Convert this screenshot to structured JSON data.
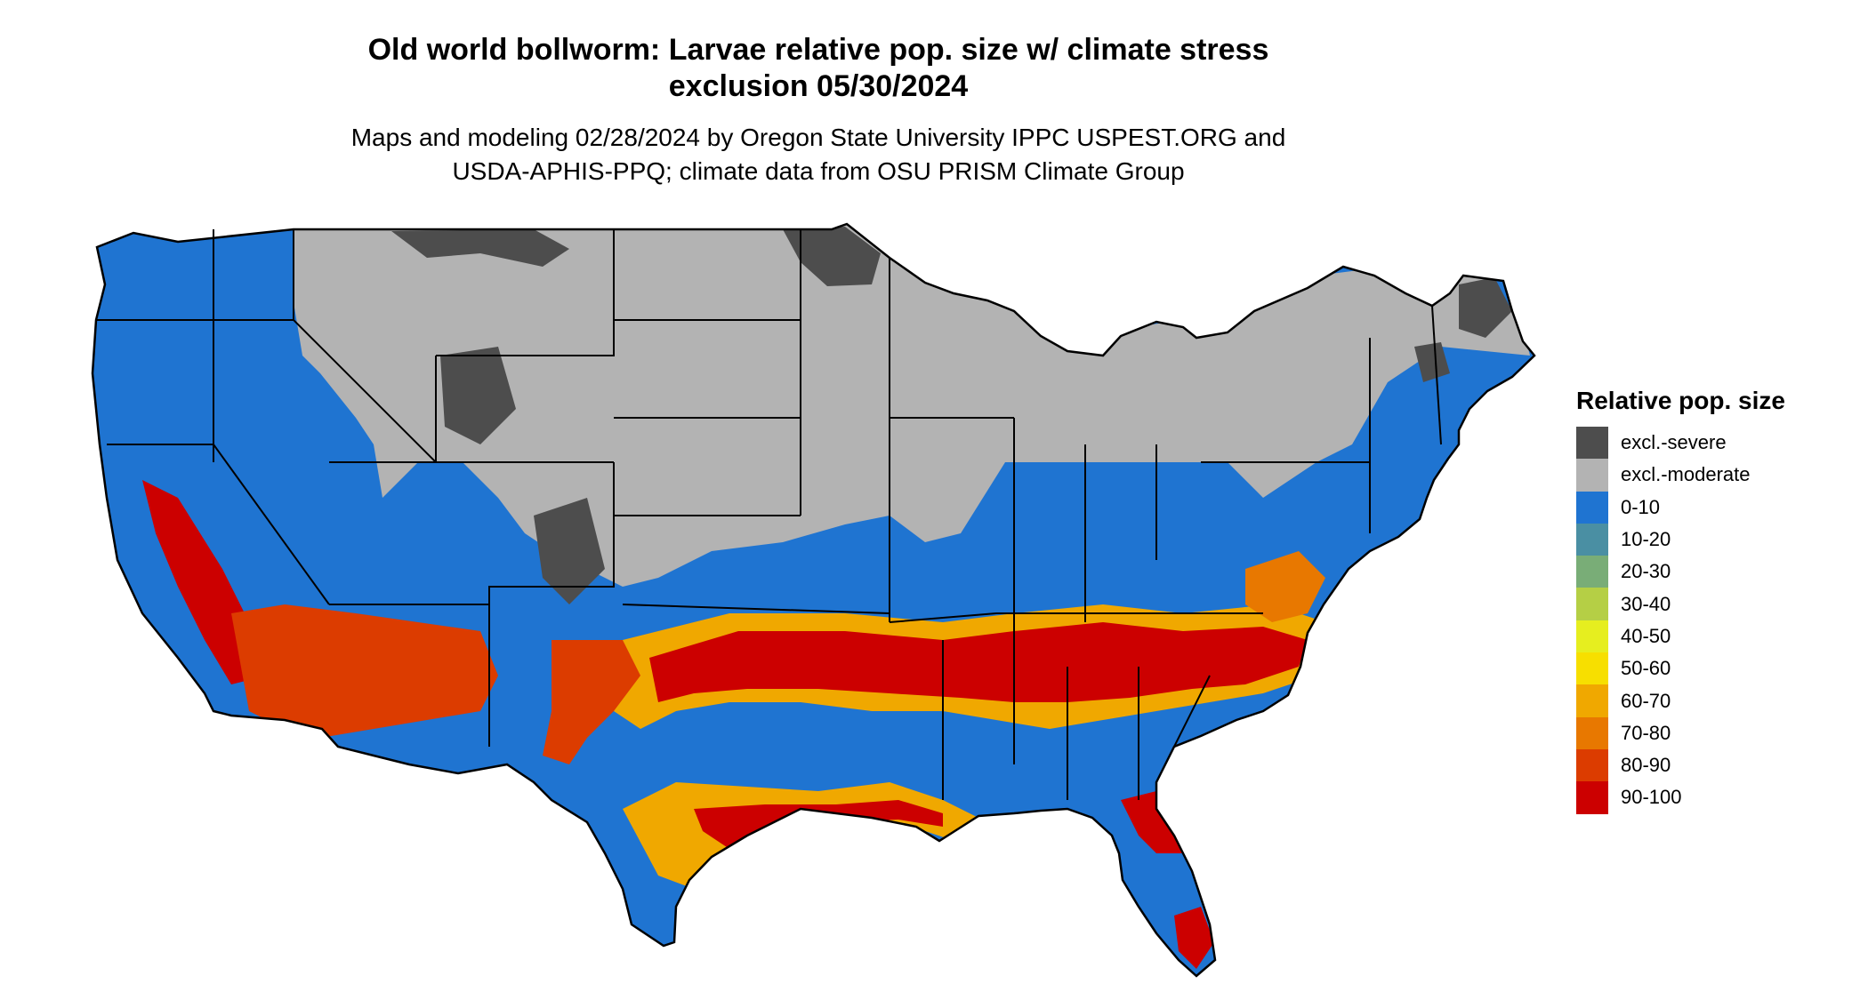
{
  "title": {
    "line1": "Old world bollworm: Larvae relative pop. size w/ climate stress",
    "line2": "exclusion 05/30/2024"
  },
  "subtitle": {
    "line1": "Maps and modeling 02/28/2024 by Oregon State University IPPC USPEST.ORG and",
    "line2": "USDA-APHIS-PPQ; climate data from OSU PRISM Climate Group"
  },
  "legend": {
    "title": "Relative pop. size",
    "items": [
      {
        "label": "excl.-severe",
        "color": "#4d4d4d"
      },
      {
        "label": "excl.-moderate",
        "color": "#b3b3b3"
      },
      {
        "label": "0-10",
        "color": "#1f74d1"
      },
      {
        "label": "10-20",
        "color": "#4a8fa3"
      },
      {
        "label": "20-30",
        "color": "#79ad77"
      },
      {
        "label": "30-40",
        "color": "#b5cf45"
      },
      {
        "label": "40-50",
        "color": "#e6ee1f"
      },
      {
        "label": "50-60",
        "color": "#f7df00"
      },
      {
        "label": "60-70",
        "color": "#f0a800"
      },
      {
        "label": "70-80",
        "color": "#e87800"
      },
      {
        "label": "80-90",
        "color": "#dc3c00"
      },
      {
        "label": "90-100",
        "color": "#cc0000"
      }
    ]
  },
  "map": {
    "region": "conterminous-united-states",
    "colors": {
      "excluded_severe": "#4d4d4d",
      "excluded_moderate": "#b3b3b3",
      "low": "#1f74d1",
      "medium": "#f0a800",
      "high": "#cc0000",
      "border": "#000000"
    }
  }
}
